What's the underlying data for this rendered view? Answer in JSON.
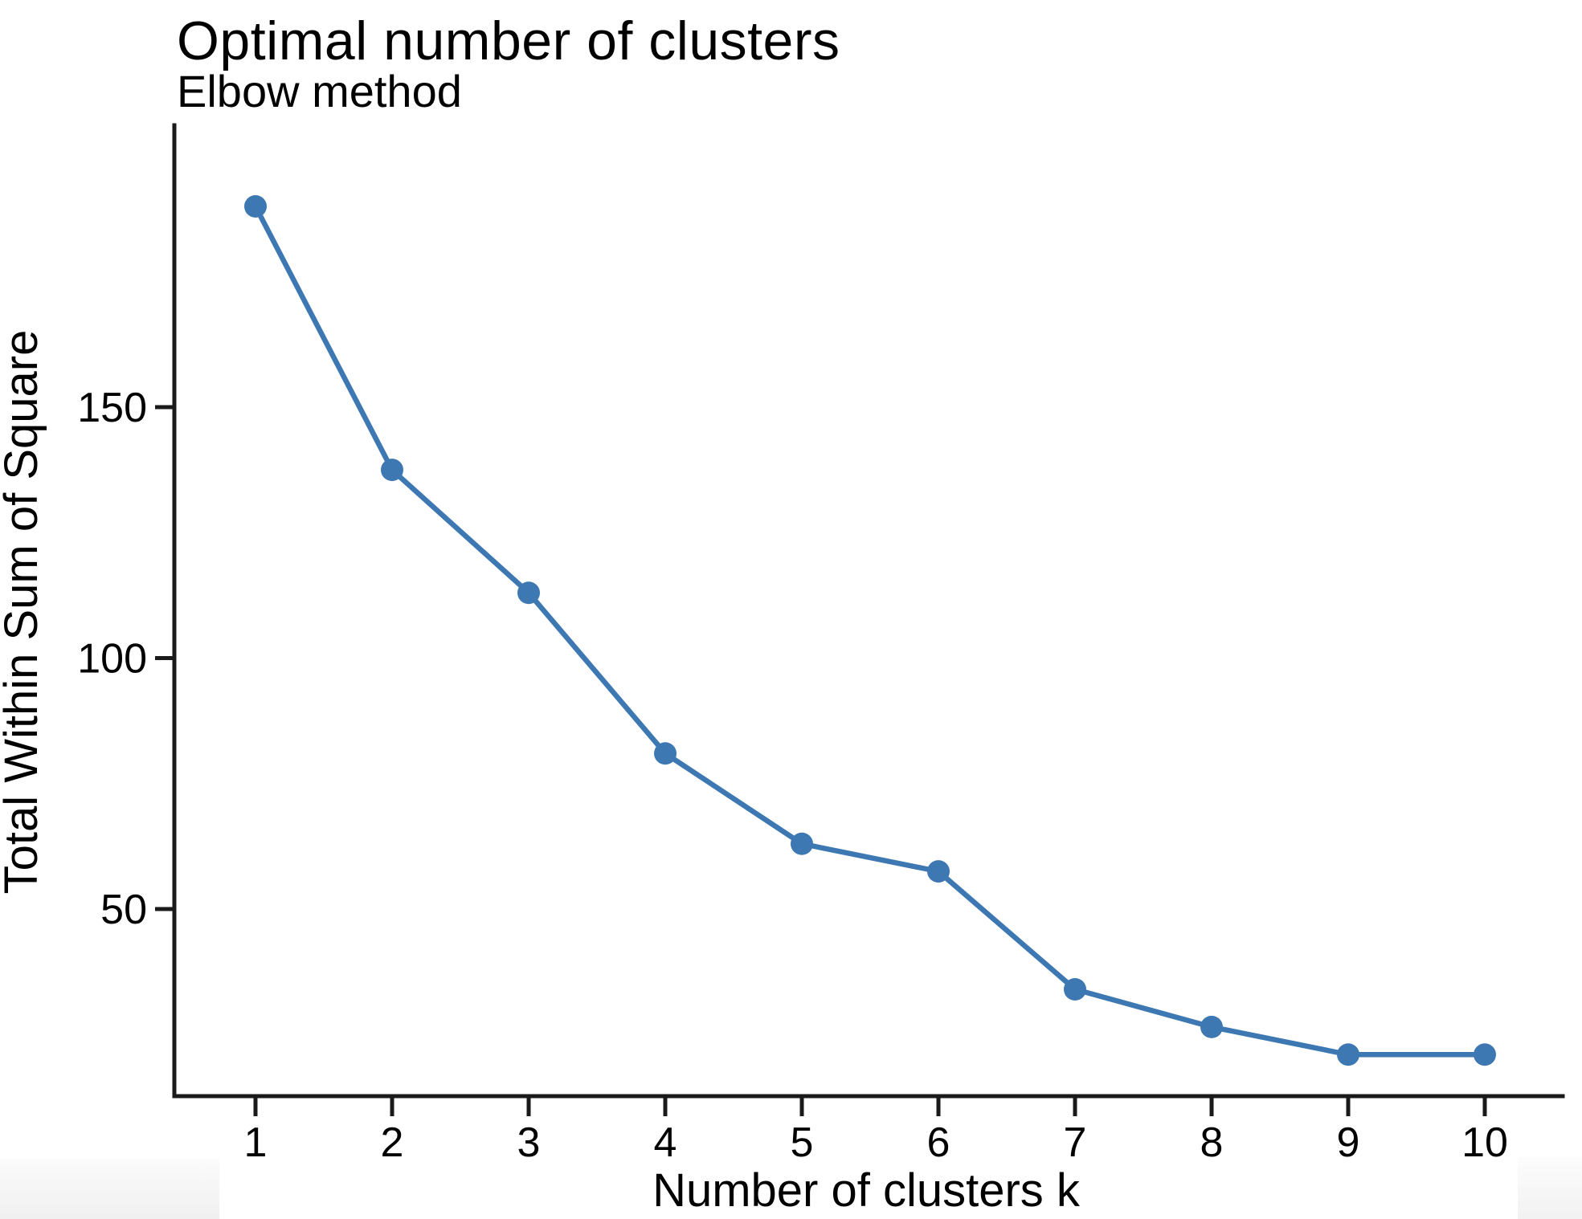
{
  "page": {
    "background": "#ffffff"
  },
  "chart": {
    "title": "Optimal number of clusters",
    "subtitle": "Elbow method",
    "line_color": "#3d78b2",
    "marker_color": "#3d78b2",
    "axis_color": "#1a1a1a",
    "text_color": "#000000"
  },
  "chart_data": {
    "type": "line",
    "title": "Optimal number of clusters",
    "subtitle": "Elbow method",
    "xlabel": "Number of clusters k",
    "ylabel": "Total Within Sum of Square",
    "x": [
      1,
      2,
      3,
      4,
      5,
      6,
      7,
      8,
      9,
      10
    ],
    "values": [
      190,
      137.5,
      113,
      81,
      63,
      57.5,
      34,
      26.5,
      21,
      21
    ],
    "x_tick_labels": [
      "1",
      "2",
      "3",
      "4",
      "5",
      "6",
      "7",
      "8",
      "9",
      "10"
    ],
    "y_ticks": [
      50,
      100,
      150
    ],
    "y_tick_labels": [
      "50",
      "100",
      "150"
    ],
    "xlim": [
      0.4,
      10.57
    ],
    "ylim": [
      12.7,
      206
    ],
    "grid": false,
    "legend": false,
    "marker": "circle",
    "line_color": "#3d78b2"
  }
}
